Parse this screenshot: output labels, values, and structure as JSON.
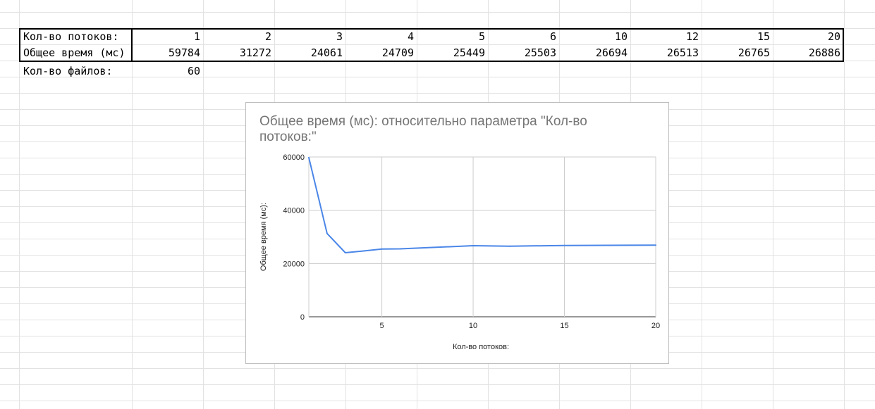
{
  "sheet": {
    "table": {
      "row1_label": "Кол-во потоков:",
      "row2_label": "Общее время (мс)",
      "threads": [
        "1",
        "2",
        "3",
        "4",
        "5",
        "6",
        "10",
        "12",
        "15",
        "20"
      ],
      "times": [
        "59784",
        "31272",
        "24061",
        "24709",
        "25449",
        "25503",
        "26694",
        "26513",
        "26765",
        "26886"
      ]
    },
    "files": {
      "label": "Кол-во файлов:",
      "value": "60"
    }
  },
  "chart_data": {
    "type": "line",
    "title": "Общее время (мс): относительно параметра \"Кол-во потоков:\"",
    "xlabel": "Кол-во потоков:",
    "ylabel": "Общее время (мс):",
    "x": [
      1,
      2,
      3,
      4,
      5,
      6,
      10,
      12,
      15,
      20
    ],
    "series": [
      {
        "values": [
          59784,
          31272,
          24061,
          24709,
          25449,
          25503,
          26694,
          26513,
          26765,
          26886
        ]
      }
    ],
    "xlim": [
      1,
      20
    ],
    "ylim": [
      0,
      60000
    ],
    "xticks": [
      "5",
      "10",
      "15",
      "20"
    ],
    "yticks": [
      "0",
      "20000",
      "40000",
      "60000"
    ],
    "grid": true,
    "line_color": "#4a86e8"
  }
}
